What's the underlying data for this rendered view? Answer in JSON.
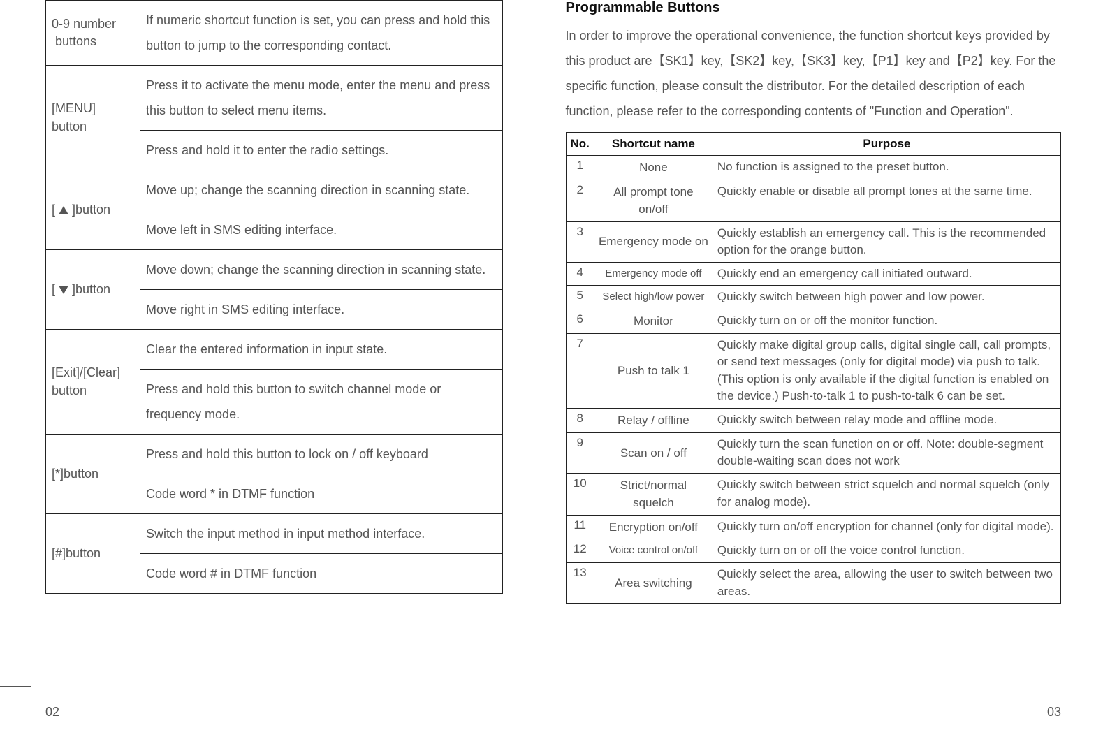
{
  "left_page_number": "02",
  "right_page_number": "03",
  "buttons_table": [
    {
      "label_html": "0-9 number<br>&nbsp;buttons",
      "rows": 1,
      "descs": [
        "If numeric shortcut function is set, you can press and hold this button to jump to the corresponding contact."
      ]
    },
    {
      "label_html": "[MENU] button",
      "rows": 2,
      "descs": [
        "Press it to activate the menu mode, enter the menu and press this button to select menu items.",
        "Press and hold it to enter the radio settings."
      ]
    },
    {
      "label_html": "[&nbsp;<span class=\"tri-up\"></span>&nbsp;]button",
      "rows": 2,
      "descs": [
        "Move up; change the scanning direction in scanning state.",
        "Move left in SMS editing interface."
      ]
    },
    {
      "label_html": "[&nbsp;<span class=\"tri-down\"></span>&nbsp;]button",
      "rows": 2,
      "descs": [
        "Move down; change the scanning direction in scanning state.",
        "Move right in SMS editing interface."
      ]
    },
    {
      "label_html": "[Exit]/[Clear]<br>button",
      "rows": 2,
      "descs": [
        "Clear the entered information in input state.",
        "Press and hold this button to switch channel mode or frequency mode."
      ]
    },
    {
      "label_html": "[*]button",
      "rows": 2,
      "descs": [
        "Press and hold this button to lock on / off keyboard",
        "Code word * in DTMF function"
      ]
    },
    {
      "label_html": "[#]button",
      "rows": 2,
      "descs": [
        "Switch the input method in input method interface.",
        "Code word # in DTMF function"
      ]
    }
  ],
  "right": {
    "title": "Programmable Buttons",
    "intro": "In order to improve the operational convenience, the function shortcut keys provided by this product are【SK1】key,【SK2】key,【SK3】key,【P1】key and【P2】key. For the specific function, please consult the distributor. For the detailed description of each function, please refer to the corresponding contents of \"Function and Operation\".",
    "headers": {
      "no": "No.",
      "name": "Shortcut name",
      "purpose": "Purpose"
    },
    "rows": [
      {
        "no": "1",
        "name": "None",
        "name_small": false,
        "purpose": "No function is assigned to the preset button."
      },
      {
        "no": "2",
        "name": "All prompt tone on/off",
        "name_small": false,
        "purpose": "Quickly enable or disable all prompt tones at the same time."
      },
      {
        "no": "3",
        "name": "Emergency mode on",
        "name_small": false,
        "purpose": "Quickly establish an emergency call. This is the recommended option for the orange button."
      },
      {
        "no": "4",
        "name": "Emergency mode off",
        "name_small": true,
        "purpose": "Quickly end an emergency call initiated outward."
      },
      {
        "no": "5",
        "name": "Select high/low power",
        "name_small": true,
        "purpose": "Quickly switch between high power and low power."
      },
      {
        "no": "6",
        "name": "Monitor",
        "name_small": false,
        "purpose": "Quickly turn on or off the monitor function."
      },
      {
        "no": "7",
        "name": "Push to talk 1",
        "name_small": false,
        "purpose": "Quickly make digital group calls, digital single call, call prompts, or send text messages (only for digital mode) via push to talk. (This option is only available if the digital function is enabled on the device.) Push-to-talk 1 to push-to-talk 6 can be set."
      },
      {
        "no": "8",
        "name": "Relay / offline",
        "name_small": false,
        "purpose": "Quickly switch between relay mode and offline mode."
      },
      {
        "no": "9",
        "name": "Scan on / off",
        "name_small": false,
        "purpose": "Quickly turn the scan function on or off. Note: double-segment double-waiting scan does not work"
      },
      {
        "no": "10",
        "name": "Strict/normal squelch",
        "name_small": false,
        "purpose": "Quickly switch between strict squelch and normal squelch (only for analog mode)."
      },
      {
        "no": "11",
        "name": "Encryption on/off",
        "name_small": false,
        "purpose": "Quickly turn on/off encryption for channel (only for digital mode)."
      },
      {
        "no": "12",
        "name": "Voice control on/off",
        "name_small": true,
        "purpose": "Quickly turn on or off the voice control function."
      },
      {
        "no": "13",
        "name": "Area switching",
        "name_small": false,
        "purpose": "Quickly select the area, allowing the user to switch between two areas."
      }
    ]
  }
}
